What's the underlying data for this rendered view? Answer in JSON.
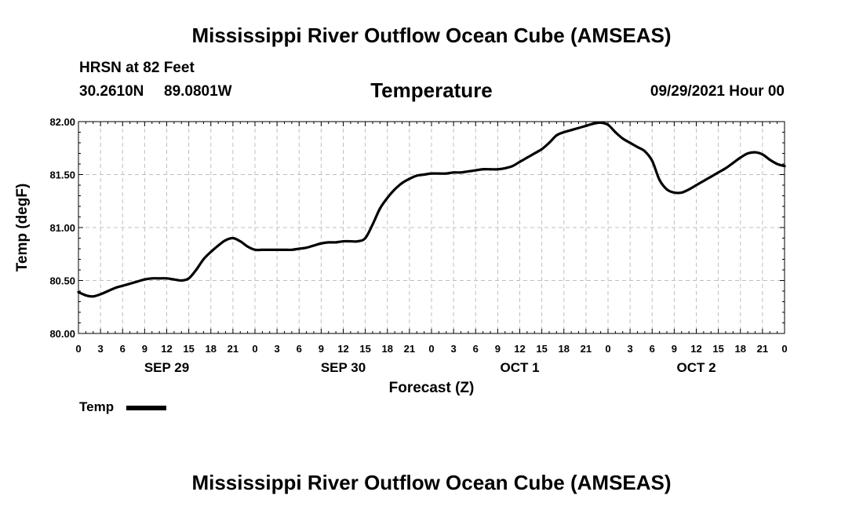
{
  "header": {
    "title_top": "Mississippi River Outflow Ocean Cube (AMSEAS)",
    "station_line": "HRSN at 82 Feet",
    "coords_lat": "30.2610N",
    "coords_lon": "89.0801W",
    "valid_time": "09/29/2021 Hour 00",
    "title_bottom": "Mississippi River Outflow Ocean Cube (AMSEAS)"
  },
  "legend": {
    "label": "Temp"
  },
  "colors": {
    "line": "#000000",
    "grid": "#bfbfbf",
    "background": "#ffffff"
  },
  "chart_data": {
    "type": "line",
    "title": "Temperature",
    "xlabel": "Forecast (Z)",
    "ylabel": "Temp (degF)",
    "xlim": [
      0,
      96
    ],
    "ylim": [
      80.0,
      82.0
    ],
    "y_ticks": [
      80.0,
      80.5,
      81.0,
      81.5,
      82.0
    ],
    "y_tick_labels": [
      "80.00",
      "80.50",
      "81.00",
      "81.50",
      "82.00"
    ],
    "x_tick_hours": [
      0,
      3,
      6,
      9,
      12,
      15,
      18,
      21,
      24,
      27,
      30,
      33,
      36,
      39,
      42,
      45,
      48,
      51,
      54,
      57,
      60,
      63,
      66,
      69,
      72,
      75,
      78,
      81,
      84,
      87,
      90,
      93,
      96
    ],
    "x_tick_labels": [
      "0",
      "3",
      "6",
      "9",
      "12",
      "15",
      "18",
      "21",
      "0",
      "3",
      "6",
      "9",
      "12",
      "15",
      "18",
      "21",
      "0",
      "3",
      "6",
      "9",
      "12",
      "15",
      "18",
      "21",
      "0",
      "3",
      "6",
      "9",
      "12",
      "15",
      "18",
      "21",
      "0"
    ],
    "day_labels": [
      {
        "label": "SEP 29",
        "hour": 12
      },
      {
        "label": "SEP 30",
        "hour": 36
      },
      {
        "label": "OCT 1",
        "hour": 60
      },
      {
        "label": "OCT 2",
        "hour": 84
      }
    ],
    "grid": true,
    "legend_position": "bottom-left",
    "series": [
      {
        "name": "Temp",
        "x": [
          0,
          1,
          2,
          3,
          4,
          5,
          6,
          7,
          8,
          9,
          10,
          11,
          12,
          13,
          14,
          15,
          16,
          17,
          18,
          19,
          20,
          21,
          22,
          23,
          24,
          25,
          26,
          27,
          28,
          29,
          30,
          31,
          32,
          33,
          34,
          35,
          36,
          37,
          38,
          39,
          40,
          41,
          42,
          43,
          44,
          45,
          46,
          47,
          48,
          49,
          50,
          51,
          52,
          53,
          54,
          55,
          56,
          57,
          58,
          59,
          60,
          61,
          62,
          63,
          64,
          65,
          66,
          67,
          68,
          69,
          70,
          71,
          72,
          73,
          74,
          75,
          76,
          77,
          78,
          79,
          80,
          81,
          82,
          83,
          84,
          85,
          86,
          87,
          88,
          89,
          90,
          91,
          92,
          93,
          94,
          95,
          96
        ],
        "values": [
          80.39,
          80.36,
          80.35,
          80.37,
          80.4,
          80.43,
          80.45,
          80.47,
          80.49,
          80.51,
          80.52,
          80.52,
          80.52,
          80.51,
          80.5,
          80.52,
          80.6,
          80.7,
          80.77,
          80.83,
          80.88,
          80.9,
          80.87,
          80.82,
          80.79,
          80.79,
          80.79,
          80.79,
          80.79,
          80.79,
          80.8,
          80.81,
          80.83,
          80.85,
          80.86,
          80.86,
          80.87,
          80.87,
          80.87,
          80.9,
          81.03,
          81.18,
          81.28,
          81.36,
          81.42,
          81.46,
          81.49,
          81.5,
          81.51,
          81.51,
          81.51,
          81.52,
          81.52,
          81.53,
          81.54,
          81.55,
          81.55,
          81.55,
          81.56,
          81.58,
          81.62,
          81.66,
          81.7,
          81.74,
          81.8,
          81.87,
          81.9,
          81.92,
          81.94,
          81.96,
          81.98,
          81.99,
          81.97,
          81.9,
          81.84,
          81.8,
          81.76,
          81.72,
          81.63,
          81.45,
          81.36,
          81.33,
          81.33,
          81.36,
          81.4,
          81.44,
          81.48,
          81.52,
          81.56,
          81.61,
          81.66,
          81.7,
          81.71,
          81.69,
          81.64,
          81.6,
          81.58
        ]
      }
    ]
  }
}
